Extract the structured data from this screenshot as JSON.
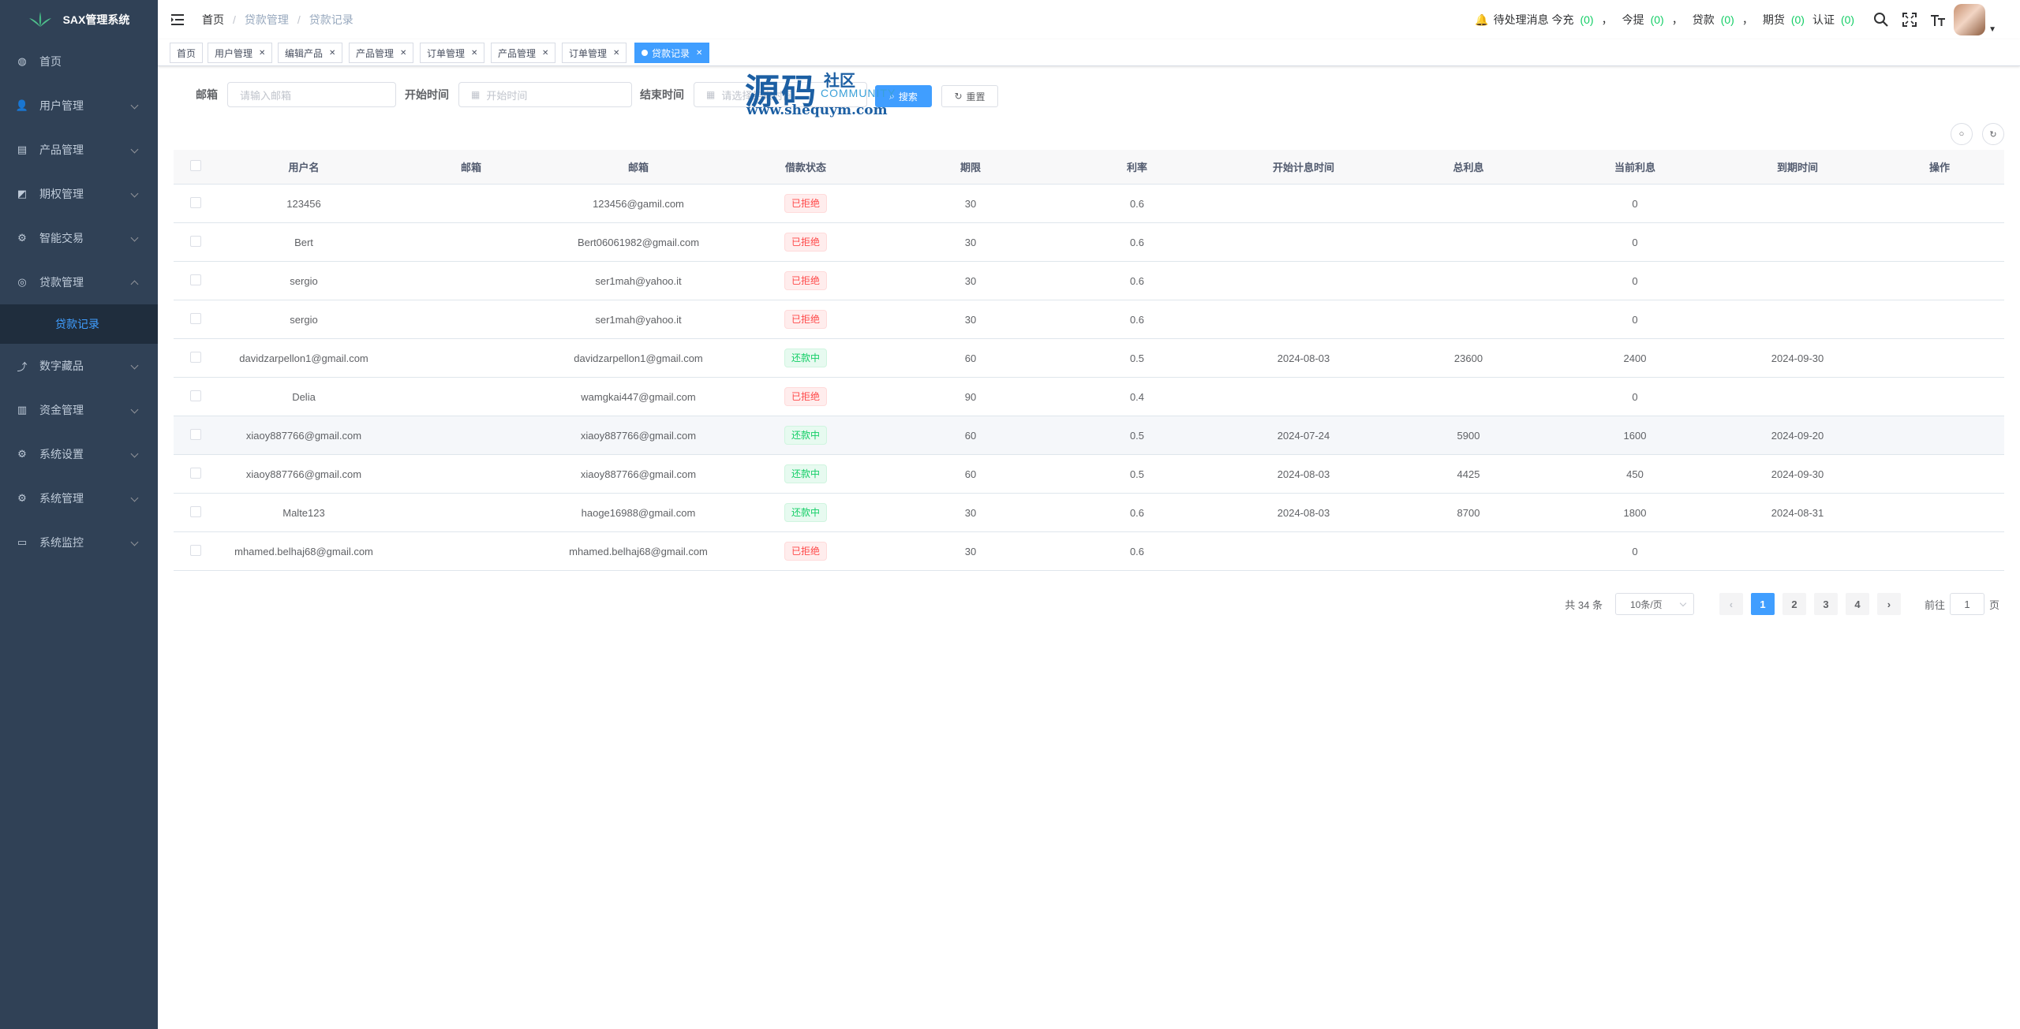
{
  "app": {
    "title": "SAX管理系统"
  },
  "sidebar": {
    "items": [
      {
        "label": "首页",
        "icon": "dashboard-icon"
      },
      {
        "label": "用户管理",
        "icon": "user-icon"
      },
      {
        "label": "产品管理",
        "icon": "document-icon"
      },
      {
        "label": "期权管理",
        "icon": "chart-icon"
      },
      {
        "label": "智能交易",
        "icon": "gear-icon"
      },
      {
        "label": "贷款管理",
        "icon": "loan-icon"
      },
      {
        "label": "数字藏品",
        "icon": "trend-icon"
      },
      {
        "label": "资金管理",
        "icon": "money-icon"
      },
      {
        "label": "系统设置",
        "icon": "settings-icon"
      },
      {
        "label": "系统管理",
        "icon": "system-icon"
      },
      {
        "label": "系统监控",
        "icon": "monitor-icon"
      }
    ],
    "submenu_label": "贷款记录"
  },
  "breadcrumb": [
    "首页",
    "贷款管理",
    "贷款记录"
  ],
  "navbar": {
    "pending_label": "待处理消息 今充",
    "recharge_count": "(0)",
    "withdraw_label": "今提",
    "withdraw_count": "(0)",
    "loan_label": "贷款",
    "loan_count": "(0)",
    "futures_label": "期货",
    "futures_count": "(0)",
    "auth_label": "认证",
    "auth_count": "(0)",
    "comma": "，"
  },
  "tags": [
    "首页",
    "用户管理",
    "编辑产品",
    "产品管理",
    "订单管理",
    "产品管理",
    "订单管理",
    "贷款记录"
  ],
  "search": {
    "email_label": "邮箱",
    "email_placeholder": "请输入邮箱",
    "start_label": "开始时间",
    "start_placeholder": "开始时间",
    "end_label": "结束时间",
    "end_placeholder": "请选择结束时间",
    "search_button": "搜索",
    "reset_button": "重置"
  },
  "watermark": {
    "big": "源码",
    "small": "社区",
    "comm": "COMMUNITY",
    "url": "www.shequym.com"
  },
  "table": {
    "headers": [
      "用户名",
      "邮箱",
      "邮箱",
      "借款状态",
      "期限",
      "利率",
      "开始计息时间",
      "总利息",
      "当前利息",
      "到期时间",
      "操作"
    ],
    "rows": [
      {
        "username": "123456",
        "email1": "",
        "email2": "123456@gamil.com",
        "status": "已拒绝",
        "status_type": "danger",
        "term": "30",
        "rate": "0.6",
        "start": "",
        "total": "",
        "current": "0",
        "due": ""
      },
      {
        "username": "Bert",
        "email1": "",
        "email2": "Bert06061982@gmail.com",
        "status": "已拒绝",
        "status_type": "danger",
        "term": "30",
        "rate": "0.6",
        "start": "",
        "total": "",
        "current": "0",
        "due": ""
      },
      {
        "username": "sergio",
        "email1": "",
        "email2": "ser1mah@yahoo.it",
        "status": "已拒绝",
        "status_type": "danger",
        "term": "30",
        "rate": "0.6",
        "start": "",
        "total": "",
        "current": "0",
        "due": ""
      },
      {
        "username": "sergio",
        "email1": "",
        "email2": "ser1mah@yahoo.it",
        "status": "已拒绝",
        "status_type": "danger",
        "term": "30",
        "rate": "0.6",
        "start": "",
        "total": "",
        "current": "0",
        "due": ""
      },
      {
        "username": "davidzarpellon1@gmail.com",
        "email1": "",
        "email2": "davidzarpellon1@gmail.com",
        "status": "还款中",
        "status_type": "success",
        "term": "60",
        "rate": "0.5",
        "start": "2024-08-03",
        "total": "23600",
        "current": "2400",
        "due": "2024-09-30"
      },
      {
        "username": "Delia",
        "email1": "",
        "email2": "wamgkai447@gmail.com",
        "status": "已拒绝",
        "status_type": "danger",
        "term": "90",
        "rate": "0.4",
        "start": "",
        "total": "",
        "current": "0",
        "due": ""
      },
      {
        "username": "xiaoy887766@gmail.com",
        "email1": "",
        "email2": "xiaoy887766@gmail.com",
        "status": "还款中",
        "status_type": "success",
        "term": "60",
        "rate": "0.5",
        "start": "2024-07-24",
        "total": "5900",
        "current": "1600",
        "due": "2024-09-20"
      },
      {
        "username": "xiaoy887766@gmail.com",
        "email1": "",
        "email2": "xiaoy887766@gmail.com",
        "status": "还款中",
        "status_type": "success",
        "term": "60",
        "rate": "0.5",
        "start": "2024-08-03",
        "total": "4425",
        "current": "450",
        "due": "2024-09-30"
      },
      {
        "username": "Malte123",
        "email1": "",
        "email2": "haoge16988@gmail.com",
        "status": "还款中",
        "status_type": "success",
        "term": "30",
        "rate": "0.6",
        "start": "2024-08-03",
        "total": "8700",
        "current": "1800",
        "due": "2024-08-31"
      },
      {
        "username": "mhamed.belhaj68@gmail.com",
        "email1": "",
        "email2": "mhamed.belhaj68@gmail.com",
        "status": "已拒绝",
        "status_type": "danger",
        "term": "30",
        "rate": "0.6",
        "start": "",
        "total": "",
        "current": "0",
        "due": ""
      }
    ]
  },
  "pagination": {
    "total": "共 34 条",
    "page_size": "10条/页",
    "pages": [
      "1",
      "2",
      "3",
      "4"
    ],
    "current": "1",
    "prev": "‹",
    "next": "›",
    "goto_label": "前往",
    "goto_value": "1",
    "page_suffix": "页"
  },
  "colors": {
    "sidebar_bg": "#304156",
    "primary": "#409eff",
    "success": "#13ce66",
    "danger": "#ff4949"
  }
}
